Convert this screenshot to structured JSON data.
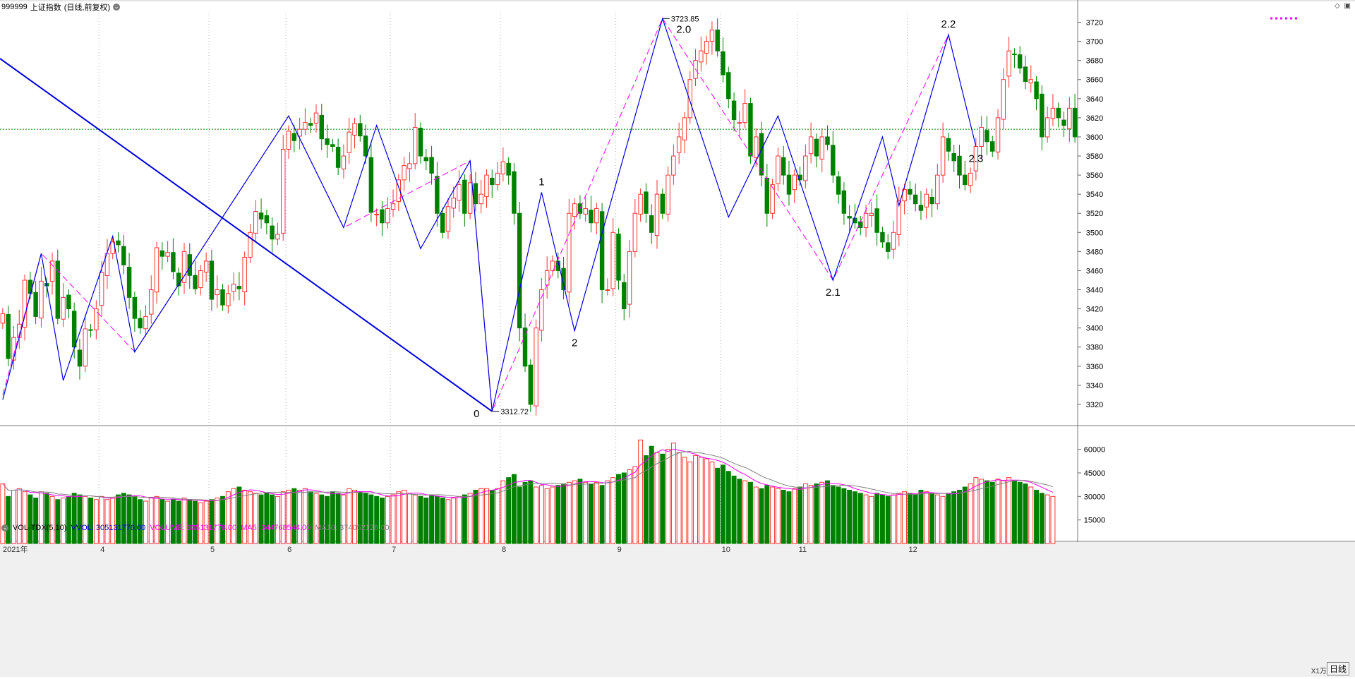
{
  "header": {
    "code": "999999",
    "name": "上证指数",
    "mode": "(日线,前复权)",
    "menu_icon": "chevron-down-icon"
  },
  "top_icons": [
    "diamond-icon",
    "window-restore-icon"
  ],
  "legend_marker": "dotted-magenta-line",
  "volume_header": {
    "indicator": "VOL-TDX(5,10)",
    "vvol": "VVOL: 305131776.00",
    "volume": "VOLUME: 305131776.00",
    "ma5": "MA5: 344768544.00",
    "ma10": "MA10: 374052128.00"
  },
  "bottom": {
    "unit": "X1万",
    "period": "日线"
  },
  "colors": {
    "up": "#ff3232",
    "down": "#008000",
    "line_blue": "#0000e0",
    "dash_magenta": "#ff00ff",
    "grid": "#b4b4b4",
    "ref_line": "#008000"
  },
  "chart_data": [
    {
      "type": "candlestick",
      "title": "",
      "months": [
        "2021年",
        "4",
        "5",
        "6",
        "7",
        "8",
        "9",
        "10",
        "11",
        "12"
      ],
      "ylim": [
        3300,
        3730
      ],
      "yticks": [
        3320,
        3340,
        3360,
        3380,
        3400,
        3420,
        3440,
        3460,
        3480,
        3500,
        3520,
        3540,
        3560,
        3580,
        3600,
        3620,
        3640,
        3660,
        3680,
        3700,
        3720
      ],
      "reference_level": 3608,
      "closes": [
        3415,
        3368,
        3390,
        3404,
        3450,
        3436,
        3412,
        3449,
        3444,
        3470,
        3410,
        3432,
        3420,
        3380,
        3360,
        3399,
        3398,
        3420,
        3458,
        3478,
        3490,
        3487,
        3466,
        3432,
        3410,
        3400,
        3412,
        3440,
        3484,
        3475,
        3479,
        3459,
        3444,
        3480,
        3455,
        3441,
        3460,
        3470,
        3430,
        3440,
        3424,
        3436,
        3446,
        3441,
        3474,
        3500,
        3522,
        3514,
        3510,
        3493,
        3498,
        3587,
        3606,
        3596,
        3608,
        3615,
        3612,
        3625,
        3598,
        3592,
        3590,
        3568,
        3580,
        3605,
        3614,
        3601,
        3580,
        3521,
        3519,
        3510,
        3525,
        3530,
        3555,
        3570,
        3572,
        3610,
        3580,
        3575,
        3562,
        3520,
        3500,
        3527,
        3536,
        3550,
        3520,
        3552,
        3530,
        3540,
        3560,
        3550,
        3562,
        3574,
        3560,
        3520,
        3400,
        3360,
        3320,
        3400,
        3440,
        3460,
        3470,
        3460,
        3440,
        3520,
        3530,
        3520,
        3525,
        3510,
        3525,
        3440,
        3440,
        3500,
        3450,
        3420,
        3480,
        3520,
        3540,
        3520,
        3500,
        3540,
        3520,
        3560,
        3580,
        3600,
        3620,
        3660,
        3680,
        3690,
        3700,
        3712,
        3690,
        3665,
        3640,
        3618,
        3615,
        3635,
        3580,
        3600,
        3560,
        3520,
        3550,
        3580,
        3560,
        3540,
        3560,
        3555,
        3580,
        3600,
        3580,
        3600,
        3592,
        3560,
        3540,
        3520,
        3515,
        3510,
        3505,
        3520,
        3520,
        3500,
        3490,
        3480,
        3500,
        3533,
        3545,
        3540,
        3530,
        3523,
        3540,
        3530,
        3560,
        3600,
        3585,
        3575,
        3560,
        3550,
        3562,
        3590,
        3610,
        3595,
        3585,
        3620,
        3660,
        3690,
        3686,
        3672,
        3658,
        3660,
        3640,
        3600,
        3620,
        3630,
        3620,
        3612,
        3630,
        3600
      ],
      "swing_line": [
        [
          0,
          3325
        ],
        [
          7,
          3478
        ],
        [
          11,
          3345
        ],
        [
          20,
          3496
        ],
        [
          24,
          3375
        ],
        [
          52,
          3622
        ],
        [
          62,
          3505
        ],
        [
          68,
          3612
        ],
        [
          76,
          3483
        ],
        [
          85,
          3575
        ],
        [
          89,
          3312.72
        ],
        [
          98,
          3542
        ],
        [
          104,
          3397
        ],
        [
          120,
          3723.85
        ],
        [
          132,
          3516
        ],
        [
          141,
          3622
        ],
        [
          151,
          3450
        ],
        [
          160,
          3600
        ],
        [
          163,
          3528
        ],
        [
          172,
          3707
        ],
        [
          177,
          3590
        ]
      ],
      "trend_line": [
        [
          0,
          3682
        ],
        [
          89,
          3312.72
        ]
      ],
      "dashed_line": [
        [
          0,
          3330
        ],
        [
          7,
          3478
        ],
        [
          24,
          3375
        ],
        [
          52,
          3622
        ],
        [
          62,
          3505
        ],
        [
          85,
          3575
        ],
        [
          89,
          3312.72
        ],
        [
          120,
          3723.85
        ],
        [
          151,
          3450
        ],
        [
          172,
          3707
        ]
      ],
      "wave_labels": [
        {
          "text": "0",
          "i": 89,
          "v": 3312.72,
          "pos": "below-left"
        },
        {
          "text": "1",
          "i": 98,
          "v": 3542,
          "pos": "above"
        },
        {
          "text": "2",
          "i": 104,
          "v": 3397,
          "pos": "below"
        },
        {
          "text": "2.0",
          "i": 120,
          "v": 3723.85,
          "pos": "right"
        },
        {
          "text": "2.1",
          "i": 151,
          "v": 3450,
          "pos": "below"
        },
        {
          "text": "2.2",
          "i": 172,
          "v": 3707,
          "pos": "above"
        },
        {
          "text": "2.3",
          "i": 177,
          "v": 3590,
          "pos": "below"
        }
      ],
      "extreme_labels": [
        {
          "text": "3723.85",
          "i": 120,
          "v": 3723.85
        },
        {
          "text": "3312.72",
          "i": 89,
          "v": 3312.72
        }
      ]
    },
    {
      "type": "bar",
      "title": "VOL-TDX(5,10)",
      "unit": "X1万",
      "ylim": [
        0,
        72000
      ],
      "yticks": [
        15000,
        30000,
        45000,
        60000
      ],
      "volumes": [
        38000,
        30000,
        34000,
        35000,
        33000,
        31000,
        29000,
        33000,
        32000,
        30000,
        28000,
        29000,
        30000,
        32000,
        31000,
        30000,
        29000,
        28000,
        30000,
        28000,
        29000,
        31000,
        32000,
        31000,
        30000,
        28000,
        27000,
        29000,
        30000,
        28000,
        27000,
        28000,
        27000,
        29000,
        28000,
        27000,
        26000,
        27000,
        28000,
        29000,
        30000,
        33000,
        35000,
        36000,
        34000,
        33000,
        32000,
        31000,
        32000,
        31000,
        30000,
        33000,
        34000,
        35000,
        34000,
        35000,
        33000,
        32000,
        31000,
        30000,
        33000,
        32000,
        31000,
        35000,
        34000,
        33000,
        32000,
        31000,
        30000,
        29000,
        30000,
        31000,
        33000,
        34000,
        32000,
        31000,
        30000,
        29000,
        31000,
        30000,
        29000,
        28000,
        29000,
        30000,
        31000,
        32000,
        34000,
        35000,
        35000,
        34000,
        35000,
        40000,
        42000,
        44000,
        36000,
        39000,
        40000,
        36000,
        37000,
        35000,
        36000,
        37000,
        38000,
        39000,
        40000,
        41000,
        39000,
        38000,
        39000,
        37000,
        40000,
        42000,
        44000,
        45000,
        47000,
        49000,
        66000,
        56000,
        62000,
        58000,
        57000,
        60000,
        64000,
        58000,
        55000,
        52000,
        56000,
        55000,
        54000,
        52000,
        48000,
        50000,
        46000,
        43000,
        41000,
        40000,
        39000,
        36000,
        35000,
        37000,
        36000,
        35000,
        34000,
        33000,
        35000,
        36000,
        38000,
        37000,
        38000,
        39000,
        40000,
        37000,
        36000,
        35000,
        34000,
        33000,
        32000,
        31000,
        30000,
        32000,
        31000,
        30000,
        31000,
        32000,
        33000,
        32000,
        31000,
        34000,
        33000,
        32000,
        31000,
        30000,
        32000,
        33000,
        34000,
        36000,
        38000,
        42000,
        41000,
        40000,
        39000,
        41000,
        40000,
        42000,
        40000,
        39000,
        38000,
        36000,
        34000,
        32000,
        31000,
        30000
      ],
      "series": [
        {
          "name": "MA5",
          "color": "#ff00ff"
        },
        {
          "name": "MA10",
          "color": "#808080"
        }
      ]
    }
  ]
}
